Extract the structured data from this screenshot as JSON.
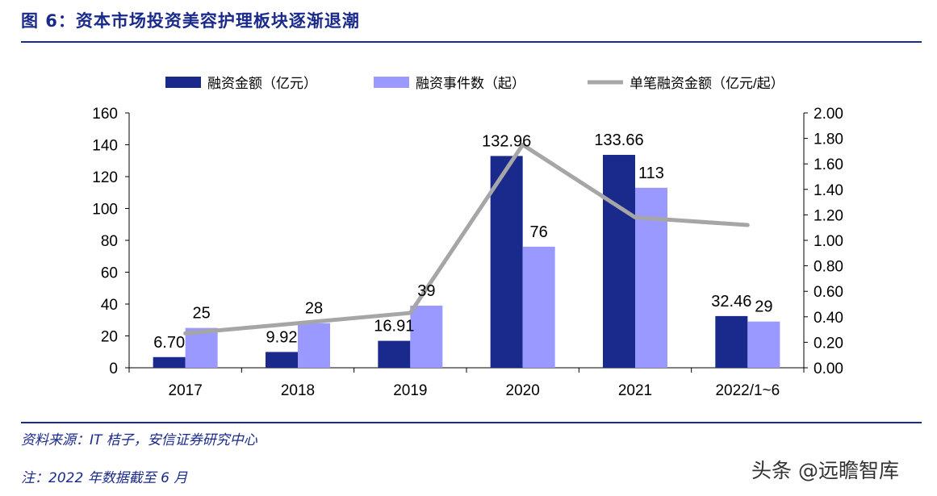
{
  "header": {
    "title": "图 6：资本市场投资美容护理板块逐渐退潮"
  },
  "chart_data": {
    "type": "bar",
    "title": "资本市场投资美容护理板块逐渐退潮",
    "categories": [
      "2017",
      "2018",
      "2019",
      "2020",
      "2021",
      "2022/1~6"
    ],
    "series": [
      {
        "name": "融资金额（亿元）",
        "type": "bar",
        "axis": "left",
        "values": [
          6.7,
          9.92,
          16.91,
          132.96,
          133.66,
          32.46
        ],
        "labels": [
          "6.70",
          "9.92",
          "16.91",
          "132.96",
          "133.66",
          "32.46"
        ],
        "color": "#1a2a8c"
      },
      {
        "name": "融资事件数（起）",
        "type": "bar",
        "axis": "left",
        "values": [
          25,
          28,
          39,
          76,
          113,
          29
        ],
        "labels": [
          "25",
          "28",
          "39",
          "76",
          "113",
          "29"
        ],
        "color": "#9999ff"
      },
      {
        "name": "单笔融资金额（亿元/起）",
        "type": "line",
        "axis": "right",
        "values": [
          0.27,
          0.35,
          0.43,
          1.75,
          1.18,
          1.12
        ],
        "color": "#a6a6a6"
      }
    ],
    "y_left": {
      "min": 0,
      "max": 160,
      "step": 20,
      "ticks": [
        "0",
        "20",
        "40",
        "60",
        "80",
        "100",
        "120",
        "140",
        "160"
      ]
    },
    "y_right": {
      "min": 0,
      "max": 2,
      "step": 0.2,
      "ticks": [
        "0.00",
        "0.20",
        "0.40",
        "0.60",
        "0.80",
        "1.00",
        "1.20",
        "1.40",
        "1.60",
        "1.80",
        "2.00"
      ]
    },
    "legend_position": "top",
    "grid": false
  },
  "footer": {
    "source": "资料来源：IT 桔子，安信证券研究中心",
    "note": "注：2022 年数据截至 6 月"
  },
  "watermark": "头条 @远瞻智库"
}
